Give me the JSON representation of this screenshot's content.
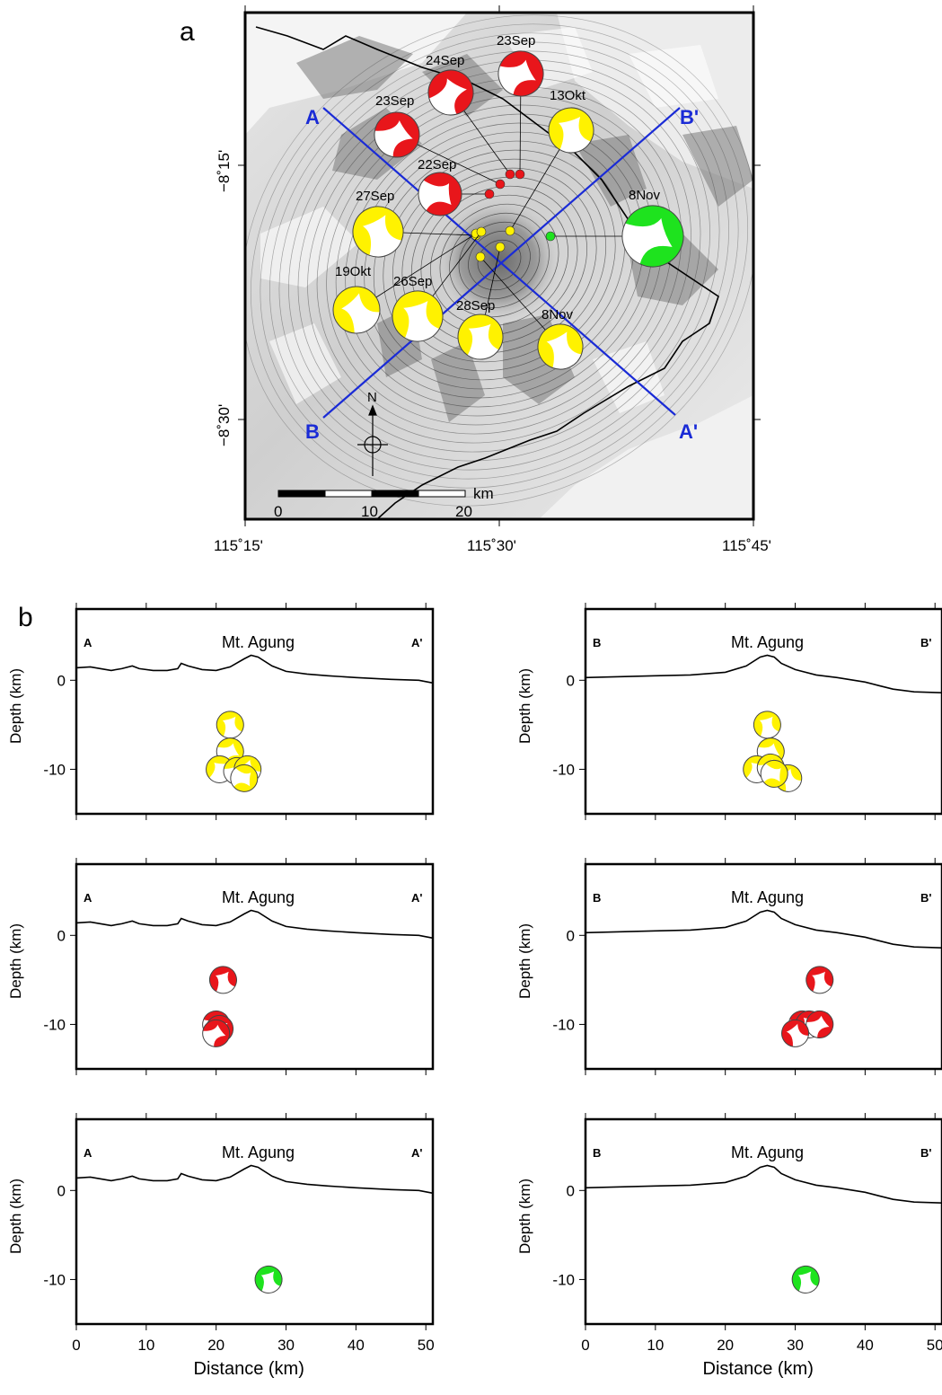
{
  "panel_a": {
    "letter": "a",
    "lat_labels": [
      "−8˚15'",
      "−8˚30'"
    ],
    "lon_labels": [
      "115˚15'",
      "115˚30'",
      "115˚45'"
    ],
    "profiles": [
      {
        "start": "A",
        "end": "A'"
      },
      {
        "start": "B",
        "end": "B'"
      }
    ],
    "north_label": "N",
    "scale_labels": [
      "0",
      "10",
      "20"
    ],
    "scale_unit": "km",
    "colors": {
      "red": "#e8161b",
      "yellow": "#fff200",
      "green": "#1ee31e",
      "profile": "#1a2bd6"
    },
    "events": [
      {
        "date": "23Sep",
        "color": "red"
      },
      {
        "date": "24Sep",
        "color": "red"
      },
      {
        "date": "23Sep",
        "color": "red"
      },
      {
        "date": "22Sep",
        "color": "red"
      },
      {
        "date": "13Okt",
        "color": "yellow"
      },
      {
        "date": "27Sep",
        "color": "yellow"
      },
      {
        "date": "19Okt",
        "color": "yellow"
      },
      {
        "date": "26Sep",
        "color": "yellow"
      },
      {
        "date": "28Sep",
        "color": "yellow"
      },
      {
        "date": "8Nov",
        "color": "yellow"
      },
      {
        "date": "8Nov",
        "color": "green"
      }
    ]
  },
  "panel_b": {
    "letter": "b",
    "ylabel": "Depth (km)",
    "xlabel": "Distance (km)",
    "y_ticks": [
      "0",
      "-10"
    ],
    "x_ticks": [
      "0",
      "10",
      "20",
      "30",
      "40",
      "50"
    ],
    "xlim": [
      0,
      51
    ],
    "ylim": [
      -15,
      8
    ],
    "summit_label": "Mt. Agung",
    "sections": [
      {
        "start": "A",
        "end": "A'",
        "color": "yellow",
        "events_km": [
          [
            22,
            -5
          ],
          [
            22,
            -8
          ],
          [
            20.5,
            -10
          ],
          [
            23,
            -10.2
          ],
          [
            24.5,
            -10
          ],
          [
            24,
            -11
          ]
        ]
      },
      {
        "start": "B",
        "end": "B'",
        "color": "yellow",
        "events_km": [
          [
            26,
            -5
          ],
          [
            26.5,
            -8
          ],
          [
            24.5,
            -10
          ],
          [
            26.5,
            -9.8
          ],
          [
            29,
            -11
          ],
          [
            27,
            -10.5
          ]
        ]
      },
      {
        "start": "A",
        "end": "A'",
        "color": "red",
        "events_km": [
          [
            21,
            -5
          ],
          [
            20,
            -10
          ],
          [
            20.5,
            -10.5
          ],
          [
            20,
            -11
          ]
        ]
      },
      {
        "start": "B",
        "end": "B'",
        "color": "red",
        "events_km": [
          [
            33.5,
            -5
          ],
          [
            31,
            -10
          ],
          [
            32,
            -10
          ],
          [
            33.5,
            -10
          ],
          [
            30,
            -11
          ]
        ]
      },
      {
        "start": "A",
        "end": "A'",
        "color": "green",
        "events_km": [
          [
            27.5,
            -10
          ]
        ]
      },
      {
        "start": "B",
        "end": "B'",
        "color": "green",
        "events_km": [
          [
            31.5,
            -10
          ]
        ]
      }
    ]
  }
}
